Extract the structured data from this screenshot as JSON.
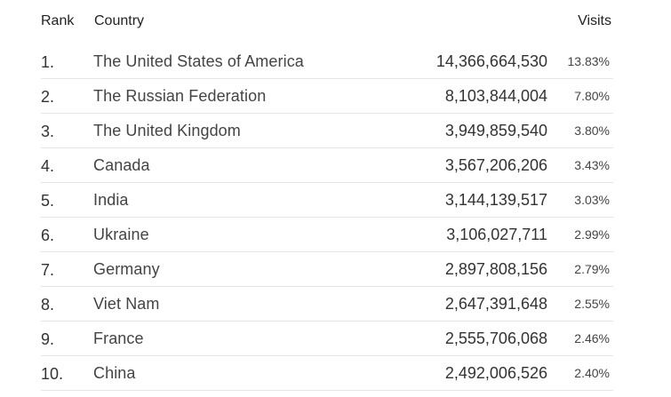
{
  "table": {
    "headers": {
      "rank": "Rank",
      "country": "Country",
      "visits": "Visits"
    },
    "rows": [
      {
        "rank": "1.",
        "country": "The United States of America",
        "visits": "14,366,664,530",
        "percent": "13.83%"
      },
      {
        "rank": "2.",
        "country": "The Russian Federation",
        "visits": "8,103,844,004",
        "percent": "7.80%"
      },
      {
        "rank": "3.",
        "country": "The United Kingdom",
        "visits": "3,949,859,540",
        "percent": "3.80%"
      },
      {
        "rank": "4.",
        "country": "Canada",
        "visits": "3,567,206,206",
        "percent": "3.43%"
      },
      {
        "rank": "5.",
        "country": "India",
        "visits": "3,144,139,517",
        "percent": "3.03%"
      },
      {
        "rank": "6.",
        "country": "Ukraine",
        "visits": "3,106,027,711",
        "percent": "2.99%"
      },
      {
        "rank": "7.",
        "country": "Germany",
        "visits": "2,897,808,156",
        "percent": "2.79%"
      },
      {
        "rank": "8.",
        "country": "Viet Nam",
        "visits": "2,647,391,648",
        "percent": "2.55%"
      },
      {
        "rank": "9.",
        "country": "France",
        "visits": "2,555,706,068",
        "percent": "2.46%"
      },
      {
        "rank": "10.",
        "country": "China",
        "visits": "2,492,006,526",
        "percent": "2.40%"
      }
    ]
  }
}
